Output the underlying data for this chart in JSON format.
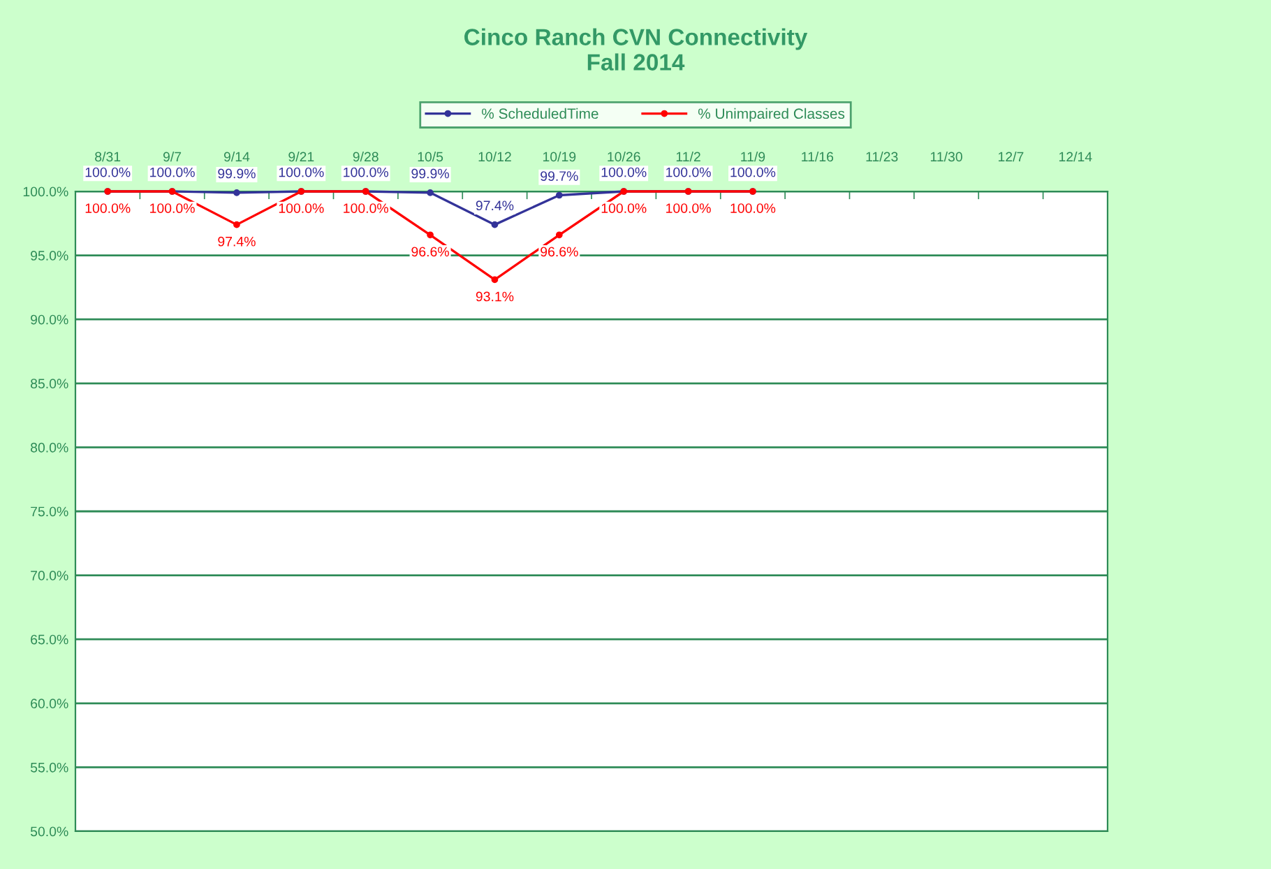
{
  "chart_data": {
    "type": "line",
    "title": "Cinco Ranch CVN Connectivity",
    "subtitle": "Fall 2014",
    "categories": [
      "8/31",
      "9/7",
      "9/14",
      "9/21",
      "9/28",
      "10/5",
      "10/12",
      "10/19",
      "10/26",
      "11/2",
      "11/9",
      "11/16",
      "11/23",
      "11/30",
      "12/7",
      "12/14"
    ],
    "series": [
      {
        "name": "% ScheduledTime",
        "color": "#333399",
        "values": [
          100.0,
          100.0,
          99.9,
          100.0,
          100.0,
          99.9,
          97.4,
          99.7,
          100.0,
          100.0,
          100.0,
          null,
          null,
          null,
          null,
          null
        ],
        "value_labels": [
          "100.0%",
          "100.0%",
          "99.9%",
          "100.0%",
          "100.0%",
          "99.9%",
          "97.4%",
          "99.7%",
          "100.0%",
          "100.0%",
          "100.0%",
          null,
          null,
          null,
          null,
          null
        ]
      },
      {
        "name": "% Unimpaired Classes",
        "color": "#ff0000",
        "values": [
          100.0,
          100.0,
          97.4,
          100.0,
          100.0,
          96.6,
          93.1,
          96.6,
          100.0,
          100.0,
          100.0,
          null,
          null,
          null,
          null,
          null
        ],
        "value_labels": [
          "100.0%",
          "100.0%",
          "97.4%",
          "100.0%",
          "100.0%",
          "96.6%",
          "93.1%",
          "96.6%",
          "100.0%",
          "100.0%",
          "100.0%",
          null,
          null,
          null,
          null,
          null
        ]
      }
    ],
    "ylim": [
      50,
      100
    ],
    "yticks": [
      {
        "value": 50,
        "label": "50.0%"
      },
      {
        "value": 55,
        "label": "55.0%"
      },
      {
        "value": 60,
        "label": "60.0%"
      },
      {
        "value": 65,
        "label": "65.0%"
      },
      {
        "value": 70,
        "label": "70.0%"
      },
      {
        "value": 75,
        "label": "75.0%"
      },
      {
        "value": 80,
        "label": "80.0%"
      },
      {
        "value": 85,
        "label": "85.0%"
      },
      {
        "value": 90,
        "label": "90.0%"
      },
      {
        "value": 95,
        "label": "95.0%"
      },
      {
        "value": 100,
        "label": "100.0%"
      }
    ],
    "grid": "y",
    "legend": "top",
    "marker": "circle",
    "line_style": "solid"
  }
}
